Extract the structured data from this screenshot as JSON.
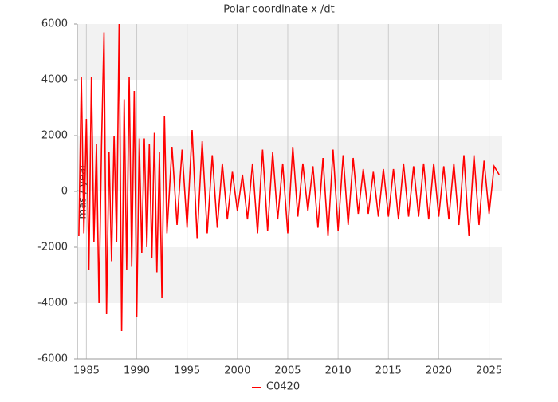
{
  "chart_data": {
    "type": "line",
    "title": "Polar coordinate x /dt",
    "y_label": "mas / year",
    "xlim": [
      1984.1,
      2026.3
    ],
    "ylim": [
      -6000,
      6000
    ],
    "xticks": [
      1985,
      1990,
      1995,
      2000,
      2005,
      2010,
      2015,
      2020,
      2025
    ],
    "yticks": [
      -6000,
      -4000,
      -2000,
      0,
      2000,
      4000,
      6000
    ],
    "grid": true,
    "legend": "bottom",
    "x": [
      1984.25,
      1984.5,
      1984.75,
      1985.0,
      1985.25,
      1985.5,
      1985.75,
      1986.0,
      1986.25,
      1986.5,
      1986.75,
      1987.0,
      1987.25,
      1987.5,
      1987.75,
      1988.0,
      1988.25,
      1988.5,
      1988.75,
      1989.0,
      1989.25,
      1989.5,
      1989.75,
      1990.0,
      1990.25,
      1990.5,
      1990.75,
      1991.0,
      1991.25,
      1991.5,
      1991.75,
      1992.0,
      1992.25,
      1992.5,
      1992.75,
      1993.0,
      1993.5,
      1994.0,
      1994.5,
      1995.0,
      1995.5,
      1996.0,
      1996.5,
      1997.0,
      1997.5,
      1998.0,
      1998.5,
      1999.0,
      1999.5,
      2000.0,
      2000.5,
      2001.0,
      2001.5,
      2002.0,
      2002.5,
      2003.0,
      2003.5,
      2004.0,
      2004.5,
      2005.0,
      2005.5,
      2006.0,
      2006.5,
      2007.0,
      2007.5,
      2008.0,
      2008.5,
      2009.0,
      2009.5,
      2010.0,
      2010.5,
      2011.0,
      2011.5,
      2012.0,
      2012.5,
      2013.0,
      2013.5,
      2014.0,
      2014.5,
      2015.0,
      2015.5,
      2016.0,
      2016.5,
      2017.0,
      2017.5,
      2018.0,
      2018.5,
      2019.0,
      2019.5,
      2020.0,
      2020.5,
      2021.0,
      2021.5,
      2022.0,
      2022.5,
      2023.0,
      2023.5,
      2024.0,
      2024.5,
      2025.0,
      2025.5,
      2026.0
    ],
    "series": [
      {
        "name": "C0420",
        "color": "#ff0000",
        "values": [
          -1600,
          4100,
          -1500,
          2600,
          -2800,
          4100,
          -1800,
          1700,
          -4000,
          1600,
          5700,
          -4400,
          1400,
          -2500,
          2000,
          -1800,
          6000,
          -5000,
          3300,
          -2800,
          4100,
          -2700,
          3600,
          -4500,
          1900,
          -2200,
          1900,
          -2000,
          1700,
          -2400,
          2100,
          -2900,
          1400,
          -3800,
          2700,
          -1500,
          1600,
          -1200,
          1500,
          -1300,
          2200,
          -1700,
          1800,
          -1500,
          1300,
          -1300,
          1000,
          -1000,
          700,
          -700,
          600,
          -1000,
          1000,
          -1500,
          1500,
          -1400,
          1400,
          -1000,
          1000,
          -1500,
          1600,
          -900,
          1000,
          -700,
          900,
          -1300,
          1200,
          -1600,
          1500,
          -1400,
          1300,
          -1200,
          1200,
          -800,
          800,
          -800,
          700,
          -900,
          800,
          -900,
          800,
          -1000,
          1000,
          -900,
          900,
          -900,
          1000,
          -1000,
          1000,
          -900,
          900,
          -1000,
          1000,
          -1200,
          1300,
          -1600,
          1300,
          -1200,
          1100,
          -800,
          900,
          600
        ]
      }
    ]
  }
}
